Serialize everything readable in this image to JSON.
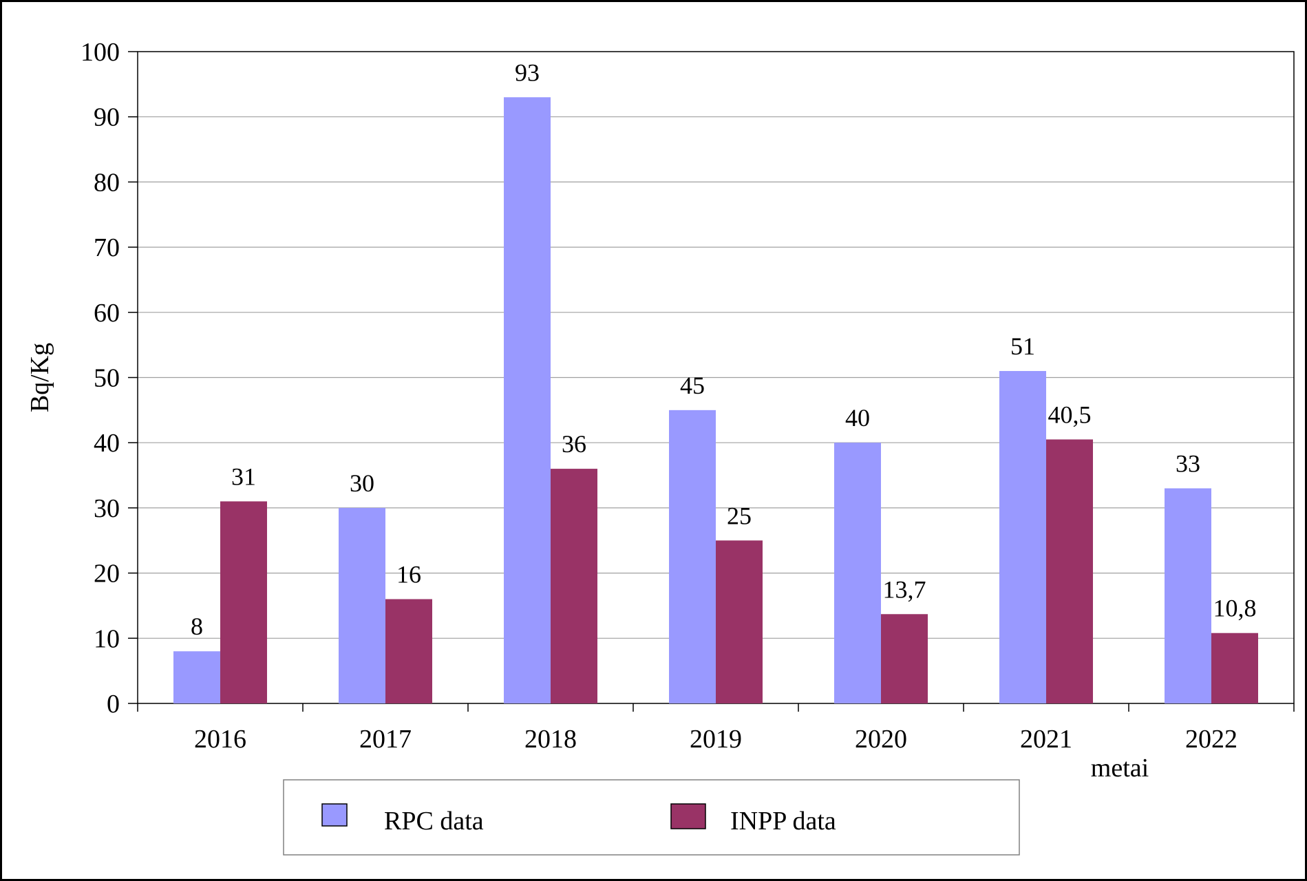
{
  "chart_data": {
    "type": "bar",
    "title": "",
    "categories": [
      "2016",
      "2017",
      "2018",
      "2019",
      "2020",
      "2021",
      "2022"
    ],
    "series": [
      {
        "name": "RPC data",
        "values": [
          8,
          30,
          93,
          45,
          40,
          51,
          33
        ],
        "labels": [
          "8",
          "30",
          "93",
          "45",
          "40",
          "51",
          "33"
        ]
      },
      {
        "name": "INPP data",
        "values": [
          31,
          16,
          36,
          25,
          13.7,
          40.5,
          10.8
        ],
        "labels": [
          "31",
          "16",
          "36",
          "25",
          "13,7",
          "40,5",
          "10,8"
        ]
      }
    ],
    "colors": [
      "#9999ff",
      "#993366"
    ],
    "ylabel": "Bq/Kg",
    "xlabel": "metai",
    "ylim": [
      0,
      100
    ],
    "yticks": [
      "0",
      "10",
      "20",
      "30",
      "40",
      "50",
      "60",
      "70",
      "80",
      "90",
      "100"
    ],
    "grid": true,
    "legend_position": "bottom"
  }
}
